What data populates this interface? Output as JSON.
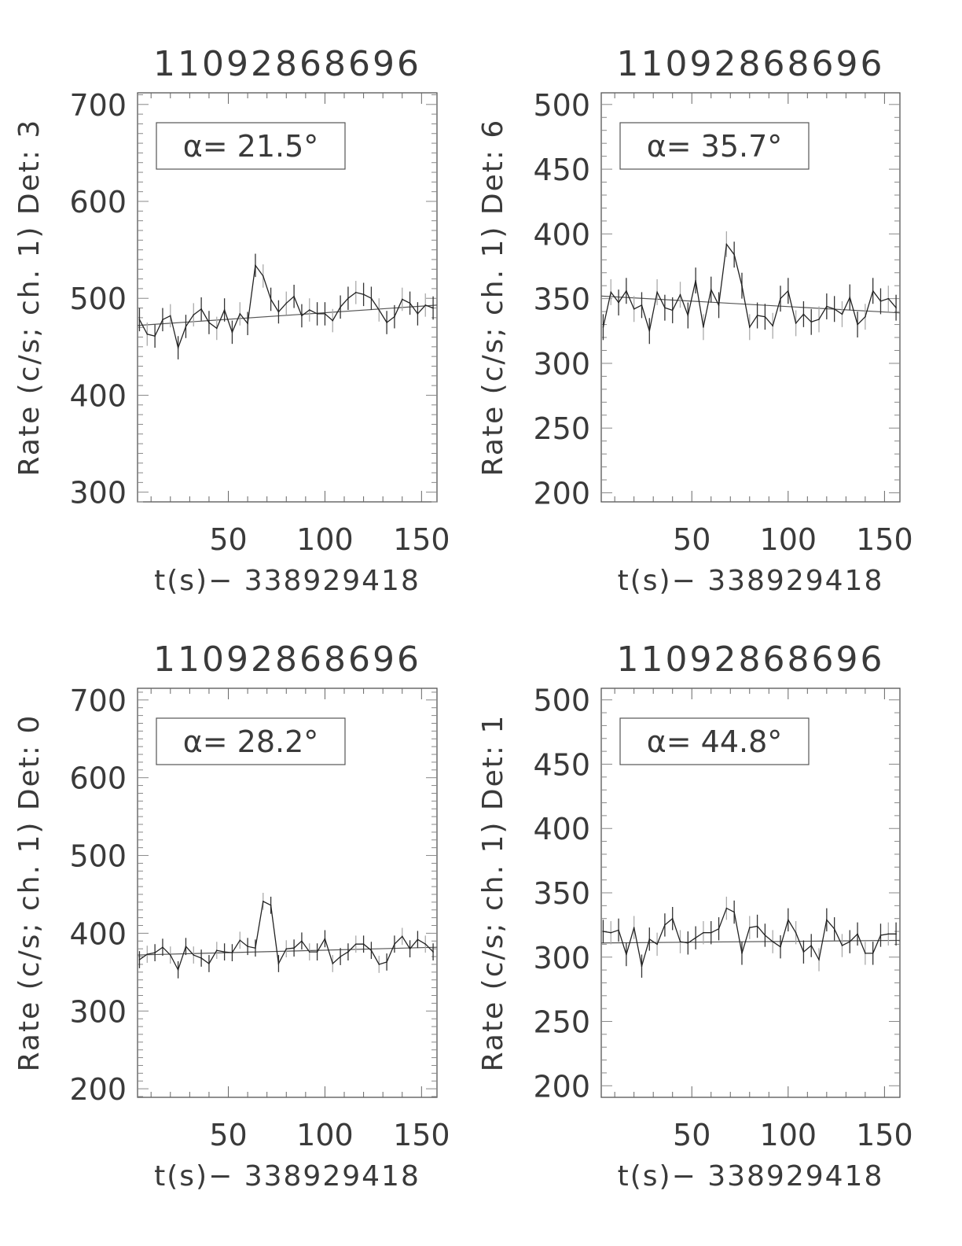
{
  "chart_data": [
    {
      "type": "line",
      "title": "11092868696",
      "xlabel": "t(s)− 338929418",
      "ylabel": "Rate (c/s; ch. 1) Det: 3",
      "annotation": "α= 21.5°",
      "xlim": [
        3,
        158
      ],
      "ylim": [
        290,
        712
      ],
      "xticks": [
        50,
        100,
        150
      ],
      "yticks": [
        300,
        400,
        500,
        600,
        700
      ],
      "x_minor_step": 10,
      "y_minor_step": 10,
      "x": [
        4,
        8,
        12,
        16,
        20,
        24,
        28,
        32,
        36,
        40,
        44,
        48,
        52,
        56,
        60,
        64,
        68,
        72,
        76,
        80,
        84,
        88,
        92,
        96,
        100,
        104,
        108,
        112,
        116,
        120,
        124,
        128,
        132,
        136,
        140,
        144,
        148,
        152,
        156
      ],
      "y": [
        478,
        463,
        461,
        478,
        482,
        449,
        471,
        483,
        489,
        475,
        469,
        488,
        465,
        484,
        474,
        534,
        523,
        499,
        486,
        495,
        502,
        482,
        488,
        484,
        484,
        477,
        491,
        500,
        506,
        504,
        500,
        488,
        475,
        481,
        499,
        495,
        484,
        493,
        490
      ],
      "error": 12,
      "fit_line": {
        "y_start": 472,
        "y_end": 493
      }
    },
    {
      "type": "line",
      "title": "11092868696",
      "xlabel": "t(s)− 338929418",
      "ylabel": "Rate (c/s; ch. 1) Det: 6",
      "annotation": "α= 35.7°",
      "xlim": [
        3,
        158
      ],
      "ylim": [
        193,
        509
      ],
      "xticks": [
        50,
        100,
        150
      ],
      "yticks": [
        200,
        250,
        300,
        350,
        400,
        450,
        500
      ],
      "x_minor_step": 10,
      "y_minor_step": 10,
      "x": [
        4,
        8,
        12,
        16,
        20,
        24,
        28,
        32,
        36,
        40,
        44,
        48,
        52,
        56,
        60,
        64,
        68,
        72,
        76,
        80,
        84,
        88,
        92,
        96,
        100,
        104,
        108,
        112,
        116,
        120,
        124,
        128,
        132,
        136,
        140,
        144,
        148,
        152,
        156
      ],
      "y": [
        328,
        355,
        347,
        356,
        342,
        345,
        325,
        355,
        343,
        341,
        353,
        337,
        364,
        328,
        357,
        345,
        392,
        384,
        360,
        328,
        337,
        336,
        329,
        350,
        356,
        331,
        338,
        332,
        334,
        344,
        342,
        338,
        351,
        330,
        336,
        356,
        348,
        350,
        343
      ],
      "error": 10,
      "fit_line": {
        "y_start": 352,
        "y_end": 339
      }
    },
    {
      "type": "line",
      "title": "11092868696",
      "xlabel": "t(s)− 338929418",
      "ylabel": "Rate (c/s; ch. 1) Det: 0",
      "annotation": "α= 28.2°",
      "xlim": [
        3,
        158
      ],
      "ylim": [
        189,
        715
      ],
      "xticks": [
        50,
        100,
        150
      ],
      "yticks": [
        200,
        300,
        400,
        500,
        600,
        700
      ],
      "x_minor_step": 10,
      "y_minor_step": 10,
      "x": [
        4,
        8,
        12,
        16,
        20,
        24,
        28,
        32,
        36,
        40,
        44,
        48,
        52,
        56,
        60,
        64,
        68,
        72,
        76,
        80,
        84,
        88,
        92,
        96,
        100,
        104,
        108,
        112,
        116,
        120,
        124,
        128,
        132,
        136,
        140,
        144,
        148,
        152,
        156
      ],
      "y": [
        366,
        373,
        375,
        382,
        372,
        353,
        383,
        372,
        368,
        361,
        378,
        376,
        375,
        391,
        383,
        381,
        441,
        436,
        361,
        380,
        381,
        390,
        376,
        376,
        393,
        361,
        370,
        376,
        386,
        386,
        378,
        360,
        363,
        386,
        396,
        380,
        392,
        386,
        376
      ],
      "error": 11,
      "fit_line": {
        "y_start": 372,
        "y_end": 382
      }
    },
    {
      "type": "line",
      "title": "11092868696",
      "xlabel": "t(s)− 338929418",
      "ylabel": "Rate (c/s; ch. 1) Det: 1",
      "annotation": "α= 44.8°",
      "xlim": [
        3,
        158
      ],
      "ylim": [
        191,
        509
      ],
      "xticks": [
        50,
        100,
        150
      ],
      "yticks": [
        200,
        250,
        300,
        350,
        400,
        450,
        500
      ],
      "x_minor_step": 10,
      "y_minor_step": 10,
      "x": [
        4,
        8,
        12,
        16,
        20,
        24,
        28,
        32,
        36,
        40,
        44,
        48,
        52,
        56,
        60,
        64,
        68,
        72,
        76,
        80,
        84,
        88,
        92,
        96,
        100,
        104,
        108,
        112,
        116,
        120,
        124,
        128,
        132,
        136,
        140,
        144,
        148,
        152,
        156
      ],
      "y": [
        320,
        319,
        321,
        302,
        323,
        293,
        314,
        310,
        325,
        330,
        312,
        311,
        315,
        319,
        319,
        322,
        338,
        335,
        303,
        323,
        324,
        317,
        312,
        308,
        329,
        319,
        304,
        309,
        298,
        329,
        322,
        309,
        312,
        318,
        303,
        303,
        317,
        318,
        318
      ],
      "error": 9,
      "fit_line": {
        "y_start": 311,
        "y_end": 313
      }
    }
  ]
}
